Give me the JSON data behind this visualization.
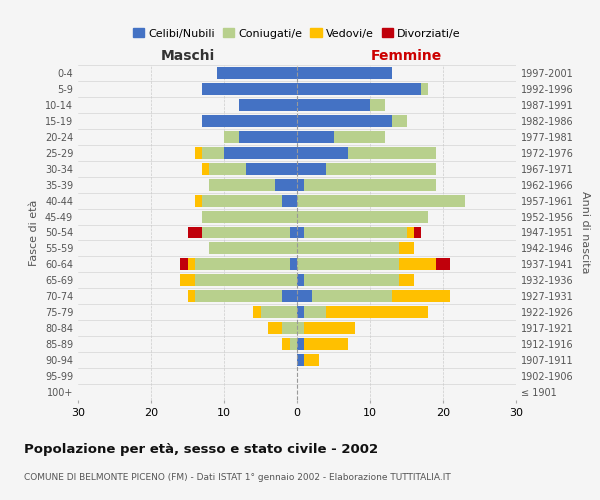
{
  "age_groups": [
    "100+",
    "95-99",
    "90-94",
    "85-89",
    "80-84",
    "75-79",
    "70-74",
    "65-69",
    "60-64",
    "55-59",
    "50-54",
    "45-49",
    "40-44",
    "35-39",
    "30-34",
    "25-29",
    "20-24",
    "15-19",
    "10-14",
    "5-9",
    "0-4"
  ],
  "birth_years": [
    "≤ 1901",
    "1902-1906",
    "1907-1911",
    "1912-1916",
    "1917-1921",
    "1922-1926",
    "1927-1931",
    "1932-1936",
    "1937-1941",
    "1942-1946",
    "1947-1951",
    "1952-1956",
    "1957-1961",
    "1962-1966",
    "1967-1971",
    "1972-1976",
    "1977-1981",
    "1982-1986",
    "1987-1991",
    "1992-1996",
    "1997-2001"
  ],
  "male_celibi": [
    0,
    0,
    0,
    0,
    0,
    0,
    2,
    0,
    1,
    0,
    1,
    0,
    2,
    3,
    7,
    10,
    8,
    13,
    8,
    13,
    11
  ],
  "male_coniugati": [
    0,
    0,
    0,
    1,
    2,
    5,
    12,
    14,
    13,
    12,
    12,
    13,
    11,
    9,
    5,
    3,
    2,
    0,
    0,
    0,
    0
  ],
  "male_vedovi": [
    0,
    0,
    0,
    1,
    2,
    1,
    1,
    2,
    1,
    0,
    0,
    0,
    1,
    0,
    1,
    1,
    0,
    0,
    0,
    0,
    0
  ],
  "male_divorziati": [
    0,
    0,
    0,
    0,
    0,
    0,
    0,
    0,
    1,
    0,
    2,
    0,
    0,
    0,
    0,
    0,
    0,
    0,
    0,
    0,
    0
  ],
  "female_nubili": [
    0,
    0,
    1,
    1,
    0,
    1,
    2,
    1,
    0,
    0,
    1,
    0,
    0,
    1,
    4,
    7,
    5,
    13,
    10,
    17,
    13
  ],
  "female_coniugate": [
    0,
    0,
    0,
    0,
    1,
    3,
    11,
    13,
    14,
    14,
    14,
    18,
    23,
    18,
    15,
    12,
    7,
    2,
    2,
    1,
    0
  ],
  "female_vedove": [
    0,
    0,
    2,
    6,
    7,
    14,
    8,
    2,
    5,
    2,
    1,
    0,
    0,
    0,
    0,
    0,
    0,
    0,
    0,
    0,
    0
  ],
  "female_divorziate": [
    0,
    0,
    0,
    0,
    0,
    0,
    0,
    0,
    2,
    0,
    1,
    0,
    0,
    0,
    0,
    0,
    0,
    0,
    0,
    0,
    0
  ],
  "color_celibi": "#4472c4",
  "color_coniugati": "#b8d08d",
  "color_vedovi": "#ffc000",
  "color_divorziati": "#c0000b",
  "title": "Popolazione per età, sesso e stato civile - 2002",
  "subtitle": "COMUNE DI BELMONTE PICENO (FM) - Dati ISTAT 1° gennaio 2002 - Elaborazione TUTTITALIA.IT",
  "label_maschi": "Maschi",
  "label_femmine": "Femmine",
  "ylabel_left": "Fasce di età",
  "ylabel_right": "Anni di nascita",
  "legend_labels": [
    "Celibi/Nubili",
    "Coniugati/e",
    "Vedovi/e",
    "Divorziati/e"
  ],
  "xlim": 30,
  "bg_color": "#f5f5f5",
  "grid_color": "#cccccc"
}
